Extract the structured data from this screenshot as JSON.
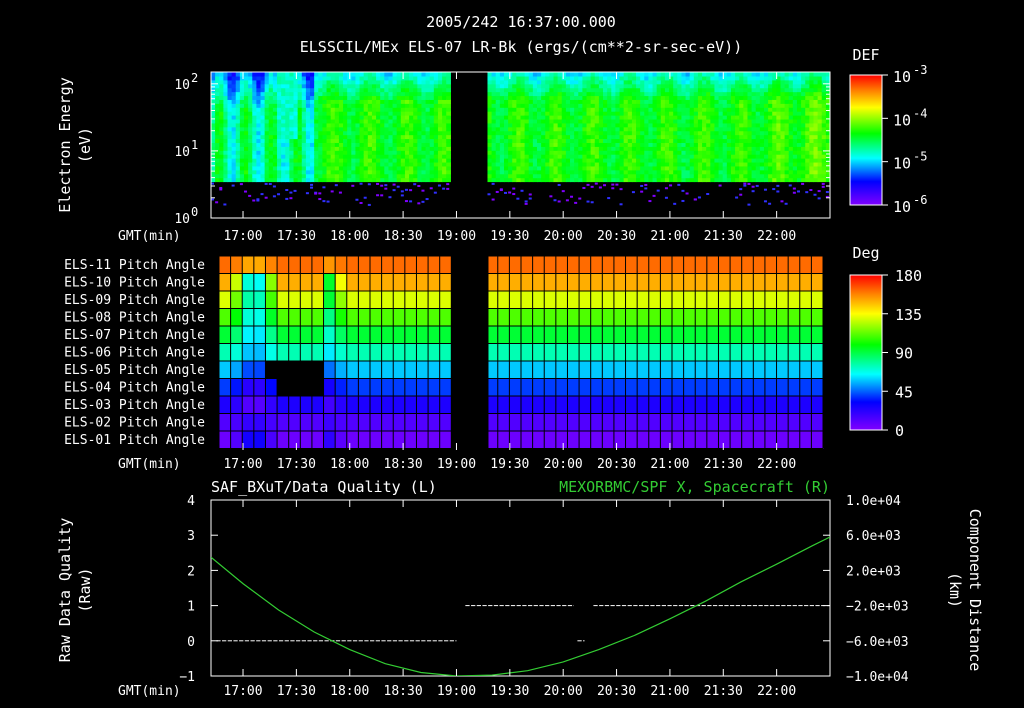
{
  "header": {
    "timestamp": "2005/242 16:37:00.000",
    "title": "ELSSCIL/MEx ELS-07 LR-Bk  (ergs/(cm**2-sr-sec-eV))"
  },
  "time_axis": {
    "label": "GMT(min)",
    "ticks": [
      "17:00",
      "17:30",
      "18:00",
      "18:30",
      "19:00",
      "19:30",
      "20:00",
      "20:30",
      "21:00",
      "21:30",
      "22:00"
    ],
    "start_min": 1002,
    "end_min": 1350,
    "gap_min": [
      1137,
      1158
    ]
  },
  "chart_data": [
    {
      "type": "heatmap",
      "name": "energy-spectrogram",
      "ylabel_line1": "Electron Energy",
      "ylabel_line2": "(eV)",
      "yscale": "log",
      "ylim": [
        1,
        150
      ],
      "ytick_mantissa": [
        "10",
        "10",
        "10"
      ],
      "ytick_exponent": [
        "0",
        "1",
        "2"
      ],
      "colorbar_title": "DEF",
      "colorbar_mantissa": [
        "10",
        "10",
        "10",
        "10"
      ],
      "colorbar_exponent": [
        "-3",
        "-4",
        "-5",
        "-6"
      ],
      "colorbar_range": [
        1e-06,
        0.001
      ]
    },
    {
      "type": "heatmap",
      "name": "pitch-angle",
      "rows": [
        "ELS-11 Pitch Angle",
        "ELS-10 Pitch Angle",
        "ELS-09 Pitch Angle",
        "ELS-08 Pitch Angle",
        "ELS-07 Pitch Angle",
        "ELS-06 Pitch Angle",
        "ELS-05 Pitch Angle",
        "ELS-04 Pitch Angle",
        "ELS-03 Pitch Angle",
        "ELS-02 Pitch Angle",
        "ELS-01 Pitch Angle"
      ],
      "late_values_deg": [
        162,
        150,
        130,
        110,
        92,
        75,
        58,
        40,
        25,
        12,
        5
      ],
      "early_values_deg": [
        150,
        60,
        70,
        65,
        60,
        55,
        40,
        20,
        10,
        20,
        30
      ],
      "colorbar_title": "Deg",
      "colorbar_ticks": [
        "180",
        "135",
        "90",
        "45",
        "0"
      ],
      "colorbar_range": [
        0,
        180
      ]
    },
    {
      "type": "line",
      "name": "quality-and-distance",
      "title_left": "SAF_BXuT/Data Quality (L)",
      "title_right": "MEXORBMC/SPF X, Spacecraft (R)",
      "ylabel_left_line1": "Raw Data Quality",
      "ylabel_left_line2": "(Raw)",
      "ylabel_right_line1": "Component Distance",
      "ylabel_right_line2": "(km)",
      "left_ylim": [
        -1,
        4
      ],
      "left_ticks": [
        "4",
        "3",
        "2",
        "1",
        "0",
        "−1"
      ],
      "right_ylim": [
        -10000,
        10000
      ],
      "right_ticks": [
        "1.0e+04",
        "6.0e+03",
        "2.0e+03",
        "−2.0e+03",
        "−6.0e+03",
        "−1.0e+04"
      ],
      "quality_segments": [
        {
          "x_start_min": 1005,
          "x_end_min": 1140,
          "value": 0
        },
        {
          "x_start_min": 1145,
          "x_end_min": 1206,
          "value": 1
        },
        {
          "x_start_min": 1217,
          "x_end_min": 1350,
          "value": 1
        },
        {
          "x_start_min": 1208,
          "x_end_min": 1212,
          "value": 0
        }
      ],
      "distance_series": {
        "name": "SPF X",
        "color": "#33cc33",
        "x_min": [
          1002,
          1020,
          1040,
          1060,
          1080,
          1100,
          1120,
          1140,
          1160,
          1180,
          1200,
          1220,
          1240,
          1260,
          1280,
          1300,
          1320,
          1340,
          1350
        ],
        "y_km": [
          3500,
          500,
          -2500,
          -5000,
          -7000,
          -8600,
          -9600,
          -10000,
          -9900,
          -9400,
          -8400,
          -7000,
          -5400,
          -3500,
          -1500,
          700,
          2700,
          4800,
          5800
        ]
      }
    }
  ]
}
